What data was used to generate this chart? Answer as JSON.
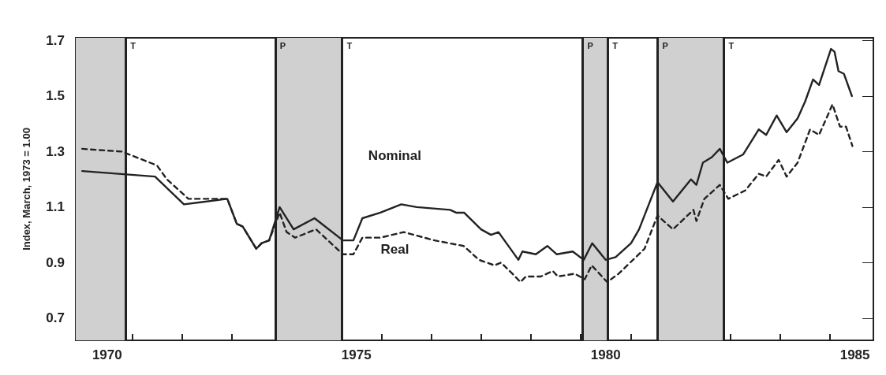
{
  "chart_data": {
    "type": "line",
    "ylabel": "Index, March, 1973 = 1.00",
    "xlim": [
      1969.87,
      1985.87
    ],
    "ylim": [
      0.62,
      1.71
    ],
    "xticks": [
      {
        "value": 1970.5,
        "label": "1970"
      },
      {
        "value": 1971,
        "label": null
      },
      {
        "value": 1972,
        "label": null
      },
      {
        "value": 1973,
        "label": null
      },
      {
        "value": 1974,
        "label": null
      },
      {
        "value": 1975,
        "label": null
      },
      {
        "value": 1975.5,
        "label": "1975"
      },
      {
        "value": 1976,
        "label": null
      },
      {
        "value": 1977,
        "label": null
      },
      {
        "value": 1978,
        "label": null
      },
      {
        "value": 1979,
        "label": null
      },
      {
        "value": 1980,
        "label": null
      },
      {
        "value": 1980.5,
        "label": "1980"
      },
      {
        "value": 1981,
        "label": null
      },
      {
        "value": 1982,
        "label": null
      },
      {
        "value": 1983,
        "label": null
      },
      {
        "value": 1984,
        "label": null
      },
      {
        "value": 1985,
        "label": null
      },
      {
        "value": 1985.5,
        "label": "1985"
      }
    ],
    "yticks": [
      0.7,
      0.9,
      1.1,
      1.3,
      1.5,
      1.7
    ],
    "series": [
      {
        "color": "#222222",
        "line_style": "solid",
        "x": [
          1970.0,
          1971.46,
          1972.04,
          1972.91,
          1973.1,
          1973.22,
          1973.49,
          1973.6,
          1973.75,
          1973.96,
          1974.24,
          1974.66,
          1975.23,
          1975.44,
          1975.62,
          1975.98,
          1976.4,
          1976.71,
          1977.38,
          1977.5,
          1977.66,
          1978.0,
          1978.2,
          1978.35,
          1978.75,
          1978.83,
          1979.1,
          1979.33,
          1979.52,
          1979.84,
          1980.06,
          1980.23,
          1980.5,
          1980.7,
          1981.01,
          1981.17,
          1981.54,
          1981.85,
          1982.21,
          1982.32,
          1982.45,
          1982.63,
          1982.79,
          1982.94,
          1983.26,
          1983.57,
          1983.72,
          1983.93,
          1984.13,
          1984.35,
          1984.5,
          1984.66,
          1984.78,
          1985.02,
          1985.09,
          1985.17,
          1985.28,
          1985.44
        ],
        "values": [
          1.23,
          1.21,
          1.11,
          1.13,
          1.04,
          1.03,
          0.95,
          0.97,
          0.98,
          1.1,
          1.02,
          1.06,
          0.98,
          0.98,
          1.06,
          1.08,
          1.11,
          1.1,
          1.09,
          1.08,
          1.08,
          1.02,
          1.0,
          1.01,
          0.91,
          0.94,
          0.93,
          0.96,
          0.93,
          0.94,
          0.91,
          0.97,
          0.91,
          0.92,
          0.97,
          1.02,
          1.19,
          1.12,
          1.2,
          1.18,
          1.26,
          1.28,
          1.31,
          1.26,
          1.29,
          1.38,
          1.36,
          1.43,
          1.37,
          1.42,
          1.48,
          1.56,
          1.54,
          1.67,
          1.66,
          1.59,
          1.58,
          1.5
        ]
      },
      {
        "color": "#222222",
        "line_style": "dashed",
        "x": [
          1970.0,
          1970.8,
          1971.5,
          1971.7,
          1972.13,
          1972.91,
          1973.1,
          1973.22,
          1973.49,
          1973.6,
          1973.75,
          1973.96,
          1974.1,
          1974.27,
          1974.69,
          1975.23,
          1975.44,
          1975.62,
          1975.98,
          1976.45,
          1977.07,
          1977.65,
          1977.96,
          1978.27,
          1978.4,
          1978.63,
          1978.79,
          1978.9,
          1979.2,
          1979.44,
          1979.54,
          1979.88,
          1980.08,
          1980.22,
          1980.53,
          1980.76,
          1981.28,
          1981.54,
          1981.85,
          1982.26,
          1982.32,
          1982.48,
          1982.79,
          1982.96,
          1983.3,
          1983.57,
          1983.72,
          1983.97,
          1984.13,
          1984.35,
          1984.6,
          1984.78,
          1985.05,
          1985.2,
          1985.32,
          1985.45
        ],
        "values": [
          1.31,
          1.3,
          1.25,
          1.2,
          1.13,
          1.13,
          1.04,
          1.03,
          0.95,
          0.97,
          0.98,
          1.08,
          1.01,
          0.99,
          1.02,
          0.93,
          0.93,
          0.99,
          0.99,
          1.01,
          0.98,
          0.96,
          0.91,
          0.89,
          0.9,
          0.86,
          0.83,
          0.85,
          0.85,
          0.87,
          0.85,
          0.86,
          0.84,
          0.89,
          0.83,
          0.86,
          0.95,
          1.07,
          1.02,
          1.09,
          1.05,
          1.13,
          1.18,
          1.13,
          1.16,
          1.22,
          1.21,
          1.27,
          1.21,
          1.26,
          1.38,
          1.36,
          1.47,
          1.39,
          1.39,
          1.32
        ]
      }
    ],
    "bands": [
      {
        "axis": "x",
        "from": 1969.87,
        "to": 1970.87,
        "color": "#d0d0d0"
      },
      {
        "axis": "x",
        "from": 1973.87,
        "to": 1975.21,
        "color": "#d0d0d0"
      },
      {
        "axis": "x",
        "from": 1980.04,
        "to": 1980.54,
        "color": "#d0d0d0"
      },
      {
        "axis": "x",
        "from": 1981.54,
        "to": 1982.87,
        "color": "#d0d0d0"
      }
    ],
    "ref_lines": [
      {
        "axis": "x",
        "value": 1970.87,
        "label": "T"
      },
      {
        "axis": "x",
        "value": 1973.87,
        "label": "P"
      },
      {
        "axis": "x",
        "value": 1975.21,
        "label": "T"
      },
      {
        "axis": "x",
        "value": 1980.04,
        "label": "P"
      },
      {
        "axis": "x",
        "value": 1980.54,
        "label": "T"
      },
      {
        "axis": "x",
        "value": 1981.54,
        "label": "P"
      },
      {
        "axis": "x",
        "value": 1982.87,
        "label": "T"
      }
    ],
    "annotations": [
      "Nominal",
      "Real"
    ]
  }
}
